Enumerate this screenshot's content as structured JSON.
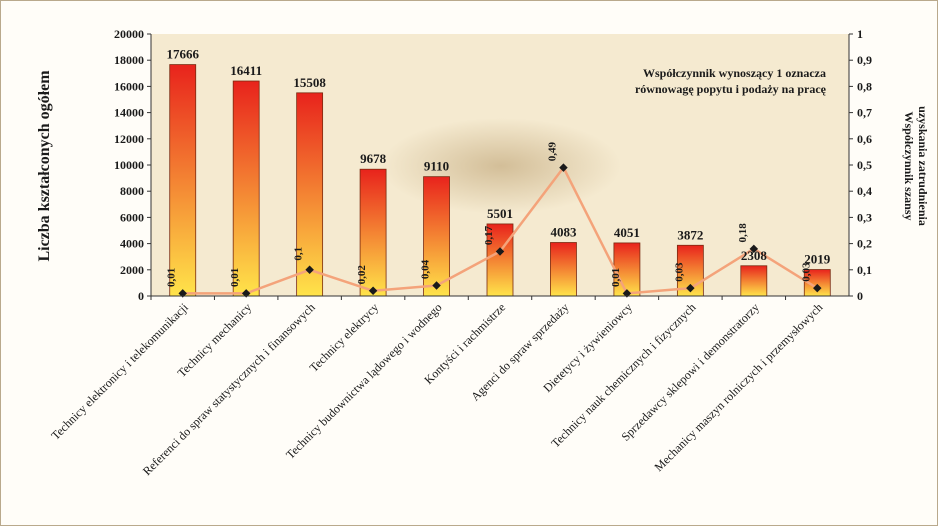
{
  "chart_data": {
    "type": "bar",
    "categories": [
      "Technicy elektronicy i telekomunikacji",
      "Technicy mechanicy",
      "Referenci do spraw statystycznych i finansowych",
      "Technicy elektrycy",
      "Technicy budownictwa lądowego i wodnego",
      "Kontyści i rachmistrze",
      "Agenci do spraw sprzedaży",
      "Dietetycy i żywieniowcy",
      "Technicy nauk chemicznych i fizycznych",
      "Sprzedawcy sklepowi i demonstratorzy",
      "Mechanicy maszyn rolniczych i przemysłowych"
    ],
    "series": [
      {
        "axis": "left",
        "type": "bar",
        "values": [
          17666,
          16411,
          15508,
          9678,
          9110,
          5501,
          4083,
          4051,
          3872,
          2308,
          2019
        ],
        "labels": [
          "17666",
          "16411",
          "15508",
          "9678",
          "9110",
          "5501",
          "4083",
          "4051",
          "3872",
          "2308",
          "2019"
        ]
      },
      {
        "axis": "right",
        "type": "line",
        "values": [
          0.01,
          0.01,
          0.1,
          0.02,
          0.04,
          0.17,
          0.49,
          0.01,
          0.03,
          0.18,
          0.03
        ],
        "labels": [
          "0,01",
          "0,01",
          "0,1",
          "0,02",
          "0,04",
          "0,17",
          "0,49",
          "0,01",
          "0,03",
          "0,18",
          "0,03"
        ]
      }
    ],
    "ylabel": "Liczba kształconych ogółem",
    "y2label_lines": [
      "Współczynnik szansy",
      "uzyskania zatrudnienia"
    ],
    "ylim": [
      0,
      20000
    ],
    "y2lim": [
      0,
      1
    ],
    "yticks": [
      "0",
      "2000",
      "4000",
      "6000",
      "8000",
      "10000",
      "12000",
      "14000",
      "16000",
      "18000",
      "20000"
    ],
    "y2ticks": [
      "0",
      "0,1",
      "0,2",
      "0,3",
      "0,4",
      "0,5",
      "0,6",
      "0,7",
      "0,8",
      "0,9",
      "1"
    ],
    "annotation_lines": [
      "Współczynnik wynoszący 1 oznacza",
      "równowagę popytu i podaży na pracę"
    ],
    "grid": false
  },
  "colors": {
    "plot_background": "#f5ead0",
    "bar_top": "#e8231c",
    "bar_bottom": "#ffe44a",
    "line": "#f4a37a",
    "marker": "#1a1a1a",
    "text": "#1a1a1a"
  }
}
